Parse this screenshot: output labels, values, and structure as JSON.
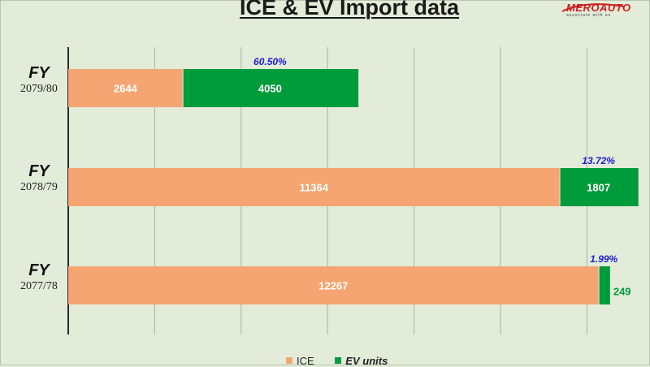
{
  "title": "ICE & EV Import data",
  "logo": {
    "text": "MEROAUTO",
    "tagline": "associate with us"
  },
  "colors": {
    "ice": "#f4a571",
    "ev": "#009b3a",
    "grid": "#a9b29f",
    "axis": "#2b2b2b",
    "pct": "#1c1cd0",
    "background": "#e2ecd9"
  },
  "legend": {
    "ice": "ICE",
    "ev": "EV units"
  },
  "chart_data": {
    "type": "bar",
    "orientation": "horizontal",
    "stacked": true,
    "title": "ICE & EV Import data",
    "xlim": [
      0,
      14000
    ],
    "grid": true,
    "categories": [
      {
        "label": "FY",
        "year": "2079/80"
      },
      {
        "label": "FY",
        "year": "2078/79"
      },
      {
        "label": "FY",
        "year": "2077/78"
      }
    ],
    "series": [
      {
        "name": "ICE",
        "values": [
          2644,
          11364,
          12267
        ],
        "labels": [
          "2644",
          "11364",
          "12267"
        ]
      },
      {
        "name": "EV units",
        "values": [
          4050,
          1807,
          249
        ],
        "labels": [
          "4050",
          "1807",
          "249"
        ]
      }
    ],
    "annotations": [
      "60.50%",
      "13.72%",
      "1.99%"
    ]
  }
}
